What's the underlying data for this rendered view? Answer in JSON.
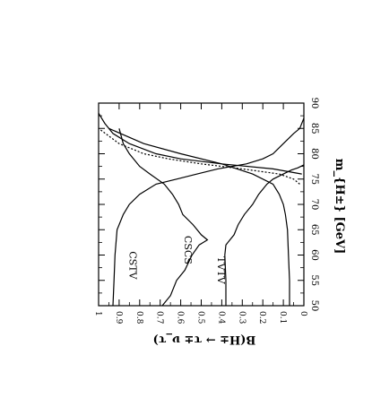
{
  "chart_data": {
    "type": "line",
    "title": "",
    "xlabel": "m_{H±} [GeV]",
    "ylabel": "B(H± → τ± ν_τ)",
    "xlim": [
      50,
      90
    ],
    "ylim": [
      0,
      1
    ],
    "x_ticks": [
      50,
      55,
      60,
      65,
      70,
      75,
      80,
      85,
      90
    ],
    "y_ticks": [
      0,
      0.1,
      0.2,
      0.3,
      0.4,
      0.5,
      0.6,
      0.7,
      0.8,
      0.9,
      1
    ],
    "x_tick_labels": [
      "50",
      "55",
      "60",
      "65",
      "70",
      "75",
      "80",
      "85",
      "90"
    ],
    "y_tick_labels": [
      "0",
      "0.1",
      "0.2",
      "0.3",
      "0.4",
      "0.5",
      "0.6",
      "0.7",
      "0.8",
      "0.9",
      "1"
    ],
    "orientation": "rotated 90° clockwise",
    "grid": false,
    "series": [
      {
        "name": "CSTV",
        "style": "solid",
        "x": [
          50,
          55,
          60,
          65,
          68,
          70,
          72,
          74,
          75,
          76,
          77,
          77.5,
          78,
          79,
          80,
          82,
          84,
          85,
          87
        ],
        "y": [
          0.93,
          0.925,
          0.92,
          0.91,
          0.88,
          0.85,
          0.8,
          0.72,
          0.62,
          0.52,
          0.42,
          0.35,
          0.28,
          0.2,
          0.15,
          0.1,
          0.05,
          0.02,
          0
        ]
      },
      {
        "name": "CSCS",
        "style": "solid",
        "x": [
          50,
          52,
          55,
          57,
          60,
          62,
          63,
          64,
          66,
          68,
          70,
          72,
          74,
          76,
          77.5,
          80,
          82,
          85
        ],
        "y": [
          0.69,
          0.65,
          0.62,
          0.58,
          0.545,
          0.51,
          0.47,
          0.5,
          0.54,
          0.59,
          0.61,
          0.64,
          0.68,
          0.75,
          0.8,
          0.85,
          0.88,
          0.9
        ]
      },
      {
        "name": "TVTV",
        "style": "solid",
        "x": [
          50,
          55,
          60,
          62,
          64,
          66,
          68,
          70,
          72,
          74,
          75,
          76,
          76.8,
          77.2,
          77.8
        ],
        "y": [
          0.38,
          0.38,
          0.385,
          0.38,
          0.34,
          0.32,
          0.29,
          0.25,
          0.22,
          0.18,
          0.15,
          0.1,
          0.06,
          0.03,
          0
        ]
      },
      {
        "name": "",
        "style": "solid",
        "x": [
          50,
          55,
          60,
          65,
          68,
          70,
          72,
          74,
          76,
          78,
          80,
          82,
          85
        ],
        "y": [
          0.07,
          0.07,
          0.075,
          0.08,
          0.09,
          0.1,
          0.12,
          0.15,
          0.25,
          0.4,
          0.6,
          0.78,
          0.95
        ]
      },
      {
        "name": "",
        "style": "solid",
        "x": [
          76,
          77,
          78,
          79,
          80,
          82,
          84,
          86,
          88
        ],
        "y": [
          0.01,
          0.15,
          0.4,
          0.6,
          0.72,
          0.85,
          0.93,
          0.97,
          1.0
        ]
      },
      {
        "name": "",
        "style": "dotted",
        "x": [
          74,
          75,
          76,
          77,
          78,
          79,
          80,
          82,
          85
        ],
        "y": [
          0.02,
          0.05,
          0.12,
          0.3,
          0.5,
          0.66,
          0.78,
          0.9,
          1.0
        ]
      }
    ],
    "curve_labels": [
      {
        "text": "CSTV",
        "x": 58,
        "y": 0.85
      },
      {
        "text": "CSCS",
        "x": 61,
        "y": 0.58
      },
      {
        "text": "TVTV",
        "x": 57,
        "y": 0.42
      }
    ]
  }
}
